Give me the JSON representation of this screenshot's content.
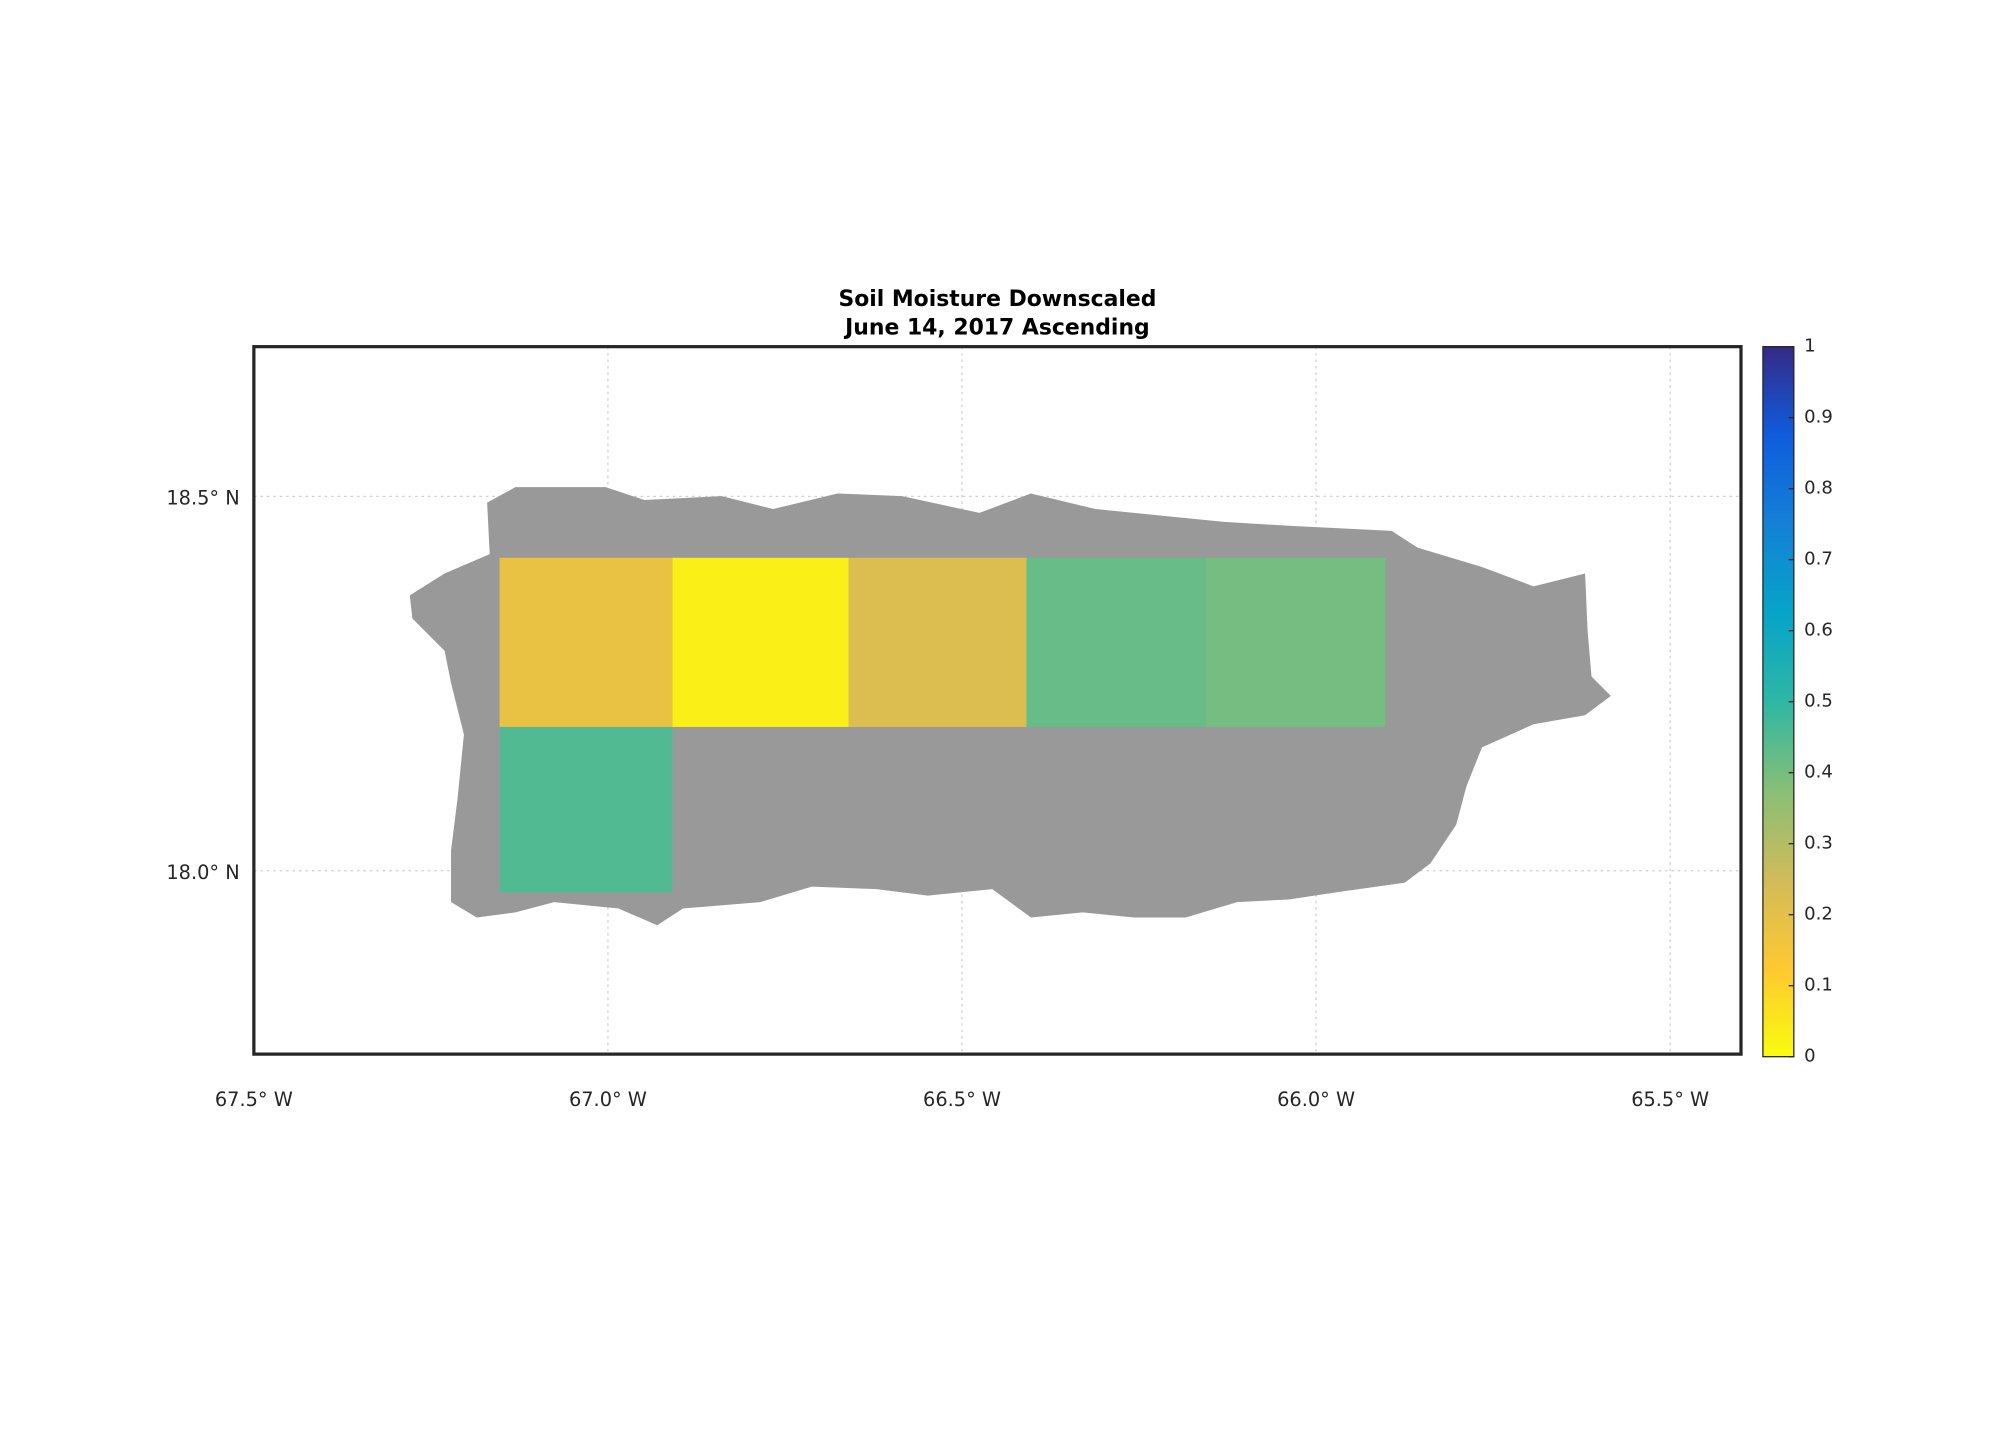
{
  "map": {
    "title": [
      "Soil Moisture Downscaled",
      "June 14, 2017 Ascending"
    ],
    "xlim": [
      -67.5,
      -65.4
    ],
    "ylim": [
      17.755,
      18.7
    ],
    "lon_ticks": [
      {
        "value": -67.5,
        "label": "67.5° W"
      },
      {
        "value": -67.0,
        "label": "67.0° W"
      },
      {
        "value": -66.5,
        "label": "66.5° W"
      },
      {
        "value": -66.0,
        "label": "66.0° W"
      },
      {
        "value": -65.5,
        "label": "65.5° W"
      }
    ],
    "lat_ticks": [
      {
        "value": 18.0,
        "label": "18.0° N"
      },
      {
        "value": 18.5,
        "label": "18.5° N"
      }
    ],
    "grid": true,
    "land_color": "#999999",
    "colorbar": {
      "lim": [
        0,
        1
      ],
      "ticks": [
        0,
        0.1,
        0.2,
        0.3,
        0.4,
        0.5,
        0.6,
        0.7,
        0.8,
        0.9,
        1
      ],
      "colormap": [
        "#f9fb0e",
        "#fec832",
        "#d1bb59",
        "#87bf77",
        "#2eb7a4",
        "#06a4ca",
        "#1481d6",
        "#0f5cdd",
        "#352a87"
      ]
    },
    "tiles": [
      {
        "lon": [
          -67.153,
          -66.909
        ],
        "lat": [
          18.192,
          18.418
        ],
        "value": 0.18
      },
      {
        "lon": [
          -66.909,
          -66.66
        ],
        "lat": [
          18.192,
          18.418
        ],
        "value": 0.03
      },
      {
        "lon": [
          -66.66,
          -66.409
        ],
        "lat": [
          18.192,
          18.418
        ],
        "value": 0.22
      },
      {
        "lon": [
          -66.409,
          -66.156
        ],
        "lat": [
          18.192,
          18.418
        ],
        "value": 0.42
      },
      {
        "lon": [
          -66.156,
          -65.902
        ],
        "lat": [
          18.192,
          18.418
        ],
        "value": 0.4
      },
      {
        "lon": [
          -67.153,
          -66.909
        ],
        "lat": [
          17.971,
          18.192
        ],
        "value": 0.45
      }
    ]
  }
}
